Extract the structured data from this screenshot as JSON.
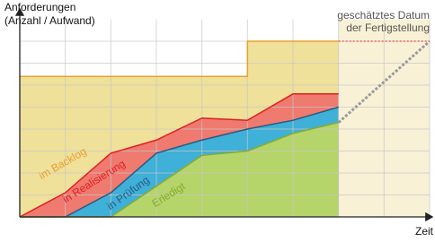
{
  "chart_data": {
    "type": "cumulative-flow",
    "y_label": [
      "Anforderungen",
      "(Anzahl / Aufwand)"
    ],
    "x_label": "Zeit",
    "annotation": [
      "geschätztes Datum",
      "der Fertigstellung"
    ],
    "xlim": [
      0,
      9
    ],
    "ylim": [
      0,
      9
    ],
    "xticks": [
      0,
      1,
      2,
      3,
      4,
      5,
      6,
      7,
      8,
      9
    ],
    "yticks": [
      0,
      1,
      2,
      3,
      4,
      5,
      6,
      7,
      8
    ],
    "grid": true,
    "series": [
      {
        "name": "im Backlog",
        "color": "#e8a030",
        "fill": "#efe09a",
        "x": [
          0,
          5,
          5,
          7
        ],
        "values": [
          6.4,
          6.4,
          8,
          8
        ]
      },
      {
        "name": "in Realisierung",
        "color": "#e02020",
        "fill": "#ef7a70",
        "x": [
          0,
          1,
          2,
          3,
          4,
          5,
          6,
          7
        ],
        "values": [
          0,
          1.1,
          2.9,
          3.5,
          4.5,
          4.4,
          5.6,
          5.6
        ]
      },
      {
        "name": "in Prüfung",
        "color": "#2a5a80",
        "fill": "#3fb0d8",
        "x": [
          0,
          1,
          2,
          3,
          4,
          5,
          6,
          7
        ],
        "values": [
          0,
          0,
          1.1,
          2.9,
          3.5,
          4.0,
          4.4,
          5.0
        ]
      },
      {
        "name": "Erledigt",
        "color": "#8aaa30",
        "fill": "#b5d46a",
        "x": [
          0,
          1,
          2,
          3,
          4,
          5,
          6,
          7
        ],
        "values": [
          0,
          0,
          0,
          1.4,
          2.8,
          3.0,
          3.8,
          4.3
        ]
      }
    ],
    "forecast": [
      {
        "color": "#999999",
        "x": [
          7,
          9
        ],
        "values": [
          4.3,
          8
        ]
      },
      {
        "color": "#e05050",
        "x": [
          7,
          9
        ],
        "values": [
          8,
          8
        ]
      }
    ]
  }
}
